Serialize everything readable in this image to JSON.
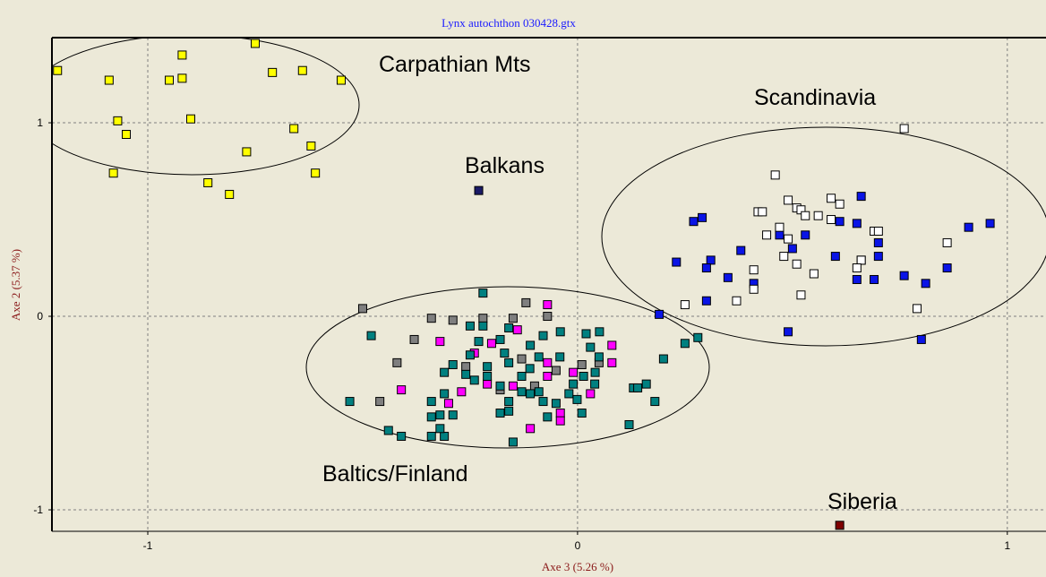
{
  "chart_data": {
    "type": "scatter",
    "title": "Lynx autochthon 030428.gtx",
    "x_label": "Axe 3 (5.26 %)",
    "y_label": "Axe 2 (5.37 %)",
    "annotations": [
      "Carpathian Mts",
      "Scandinavia",
      "Balkans",
      "Baltics/Finland",
      "Siberia"
    ],
    "xlim": [
      -1.223,
      1.09
    ],
    "ylim": [
      -1.111,
      1.44
    ],
    "xticks": [
      -1,
      0,
      1
    ],
    "yticks": [
      -1,
      0,
      1
    ],
    "grid": true,
    "series": [
      {
        "color": "#ffff00",
        "x": [
          -1.21,
          -1.09,
          -0.92,
          -0.75,
          -0.95,
          -0.92,
          -0.71,
          -0.64,
          -0.55,
          -1.07,
          -1.05,
          -0.9,
          -0.66,
          -0.62,
          -0.77,
          -1.08,
          -0.61,
          -0.86,
          -0.81
        ],
        "values": [
          1.27,
          1.22,
          1.35,
          1.41,
          1.22,
          1.23,
          1.26,
          1.27,
          1.22,
          1.01,
          0.94,
          1.02,
          0.97,
          0.88,
          0.85,
          0.74,
          0.74,
          0.69,
          0.63
        ]
      },
      {
        "color": "#1a1a66",
        "x": [
          -0.23
        ],
        "values": [
          0.65
        ]
      },
      {
        "color": "#7f0000",
        "x": [
          0.61
        ],
        "values": [
          -1.08
        ]
      },
      {
        "color": "#0a14e6",
        "x": [
          0.27,
          0.29,
          0.66,
          0.61,
          0.65,
          0.7,
          0.7,
          0.91,
          0.96,
          0.86,
          0.81,
          0.76,
          0.69,
          0.65,
          0.6,
          0.66,
          0.53,
          0.5,
          0.47,
          0.38,
          0.31,
          0.3,
          0.23,
          0.35,
          0.41,
          0.3,
          0.49,
          0.8,
          0.19
        ],
        "values": [
          0.49,
          0.51,
          0.62,
          0.49,
          0.48,
          0.38,
          0.31,
          0.46,
          0.48,
          0.25,
          0.17,
          0.21,
          0.19,
          0.19,
          0.31,
          0.29,
          0.42,
          0.35,
          0.42,
          0.34,
          0.29,
          0.25,
          0.28,
          0.2,
          0.17,
          0.08,
          -0.08,
          -0.12,
          0.01
        ]
      },
      {
        "color": "#ffffff",
        "x": [
          0.76,
          0.46,
          0.49,
          0.42,
          0.43,
          0.51,
          0.52,
          0.53,
          0.56,
          0.59,
          0.61,
          0.59,
          0.69,
          0.7,
          0.66,
          0.47,
          0.44,
          0.49,
          0.48,
          0.51,
          0.41,
          0.41,
          0.37,
          0.55,
          0.52,
          0.86,
          0.79,
          0.25,
          0.65
        ],
        "values": [
          0.97,
          0.73,
          0.6,
          0.54,
          0.54,
          0.56,
          0.55,
          0.52,
          0.52,
          0.61,
          0.58,
          0.5,
          0.44,
          0.44,
          0.29,
          0.46,
          0.42,
          0.4,
          0.31,
          0.27,
          0.24,
          0.14,
          0.08,
          0.22,
          0.11,
          0.38,
          0.04,
          0.06,
          0.25
        ]
      },
      {
        "color": "#7f7f7f",
        "x": [
          -0.5,
          -0.34,
          -0.29,
          -0.22,
          -0.15,
          -0.12,
          -0.07,
          -0.38,
          -0.42,
          -0.26,
          -0.05,
          -0.13,
          0.01,
          -0.46,
          -0.18,
          -0.1,
          0.05
        ],
        "values": [
          0.04,
          -0.01,
          -0.02,
          -0.01,
          -0.01,
          0.07,
          0.0,
          -0.12,
          -0.24,
          -0.26,
          -0.28,
          -0.22,
          -0.25,
          -0.44,
          -0.38,
          -0.36,
          -0.24
        ]
      },
      {
        "color": "#ff00ff",
        "x": [
          -0.07,
          -0.14,
          -0.32,
          -0.24,
          -0.2,
          0.08,
          0.08,
          -0.07,
          -0.01,
          -0.41,
          -0.27,
          -0.3,
          -0.15,
          -0.07,
          -0.04,
          -0.04,
          -0.11,
          0.03,
          -0.21
        ],
        "values": [
          0.06,
          -0.07,
          -0.13,
          -0.19,
          -0.14,
          -0.15,
          -0.24,
          -0.24,
          -0.29,
          -0.38,
          -0.39,
          -0.45,
          -0.36,
          -0.31,
          -0.5,
          -0.54,
          -0.58,
          -0.4,
          -0.35
        ]
      },
      {
        "color": "#008080",
        "x": [
          -0.22,
          -0.48,
          -0.53,
          -0.44,
          -0.41,
          -0.34,
          -0.31,
          -0.32,
          -0.34,
          -0.32,
          -0.29,
          -0.34,
          -0.31,
          -0.31,
          -0.29,
          -0.25,
          -0.23,
          -0.22,
          -0.25,
          -0.16,
          -0.18,
          -0.17,
          -0.16,
          -0.21,
          -0.24,
          -0.21,
          -0.18,
          -0.16,
          -0.18,
          -0.16,
          -0.15,
          -0.13,
          -0.11,
          -0.09,
          -0.08,
          -0.07,
          -0.05,
          -0.02,
          -0.001,
          0.01,
          -0.01,
          0.014,
          0.04,
          0.041,
          0.05,
          0.03,
          0.02,
          0.051,
          -0.04,
          -0.08,
          -0.11,
          -0.09,
          -0.111,
          -0.041,
          0.13,
          0.14,
          0.16,
          0.18,
          0.2,
          0.25,
          0.28,
          0.12,
          -0.13,
          -0.26
        ],
        "values": [
          0.12,
          -0.1,
          -0.44,
          -0.59,
          -0.62,
          -0.62,
          -0.62,
          -0.58,
          -0.52,
          -0.51,
          -0.51,
          -0.44,
          -0.4,
          -0.29,
          -0.25,
          -0.2,
          -0.13,
          -0.05,
          -0.05,
          -0.06,
          -0.12,
          -0.19,
          -0.24,
          -0.31,
          -0.33,
          -0.26,
          -0.36,
          -0.44,
          -0.5,
          -0.49,
          -0.65,
          -0.39,
          -0.4,
          -0.39,
          -0.44,
          -0.52,
          -0.45,
          -0.4,
          -0.43,
          -0.5,
          -0.35,
          -0.31,
          -0.35,
          -0.29,
          -0.21,
          -0.16,
          -0.09,
          -0.08,
          -0.08,
          -0.1,
          -0.15,
          -0.21,
          -0.27,
          -0.21,
          -0.37,
          -0.37,
          -0.35,
          -0.44,
          -0.22,
          -0.14,
          -0.11,
          -0.56,
          -0.31,
          -0.3
        ]
      }
    ]
  }
}
